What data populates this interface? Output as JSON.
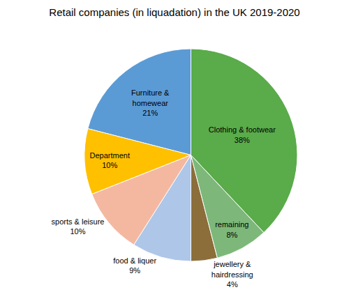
{
  "chart_data": {
    "type": "pie",
    "title": "Retail companies (in liquadation) in the UK 2019-2020",
    "categories": [
      "Clothing & footwear\n38%",
      "Furniture &\nhomewear\n21%",
      "Department\n10%",
      "sports & leisure\n10%",
      "food & liquer\n9%",
      "jewellery &\nhairdressing\n4%",
      "remaining\n8%"
    ],
    "values": [
      38,
      21,
      10,
      10,
      9,
      4,
      8
    ],
    "colors": [
      "#5aab4a",
      "#5b9bd5",
      "#ffc000",
      "#f4b8a0",
      "#aec6e8",
      "#8b6e3a",
      "#7db87a"
    ]
  }
}
